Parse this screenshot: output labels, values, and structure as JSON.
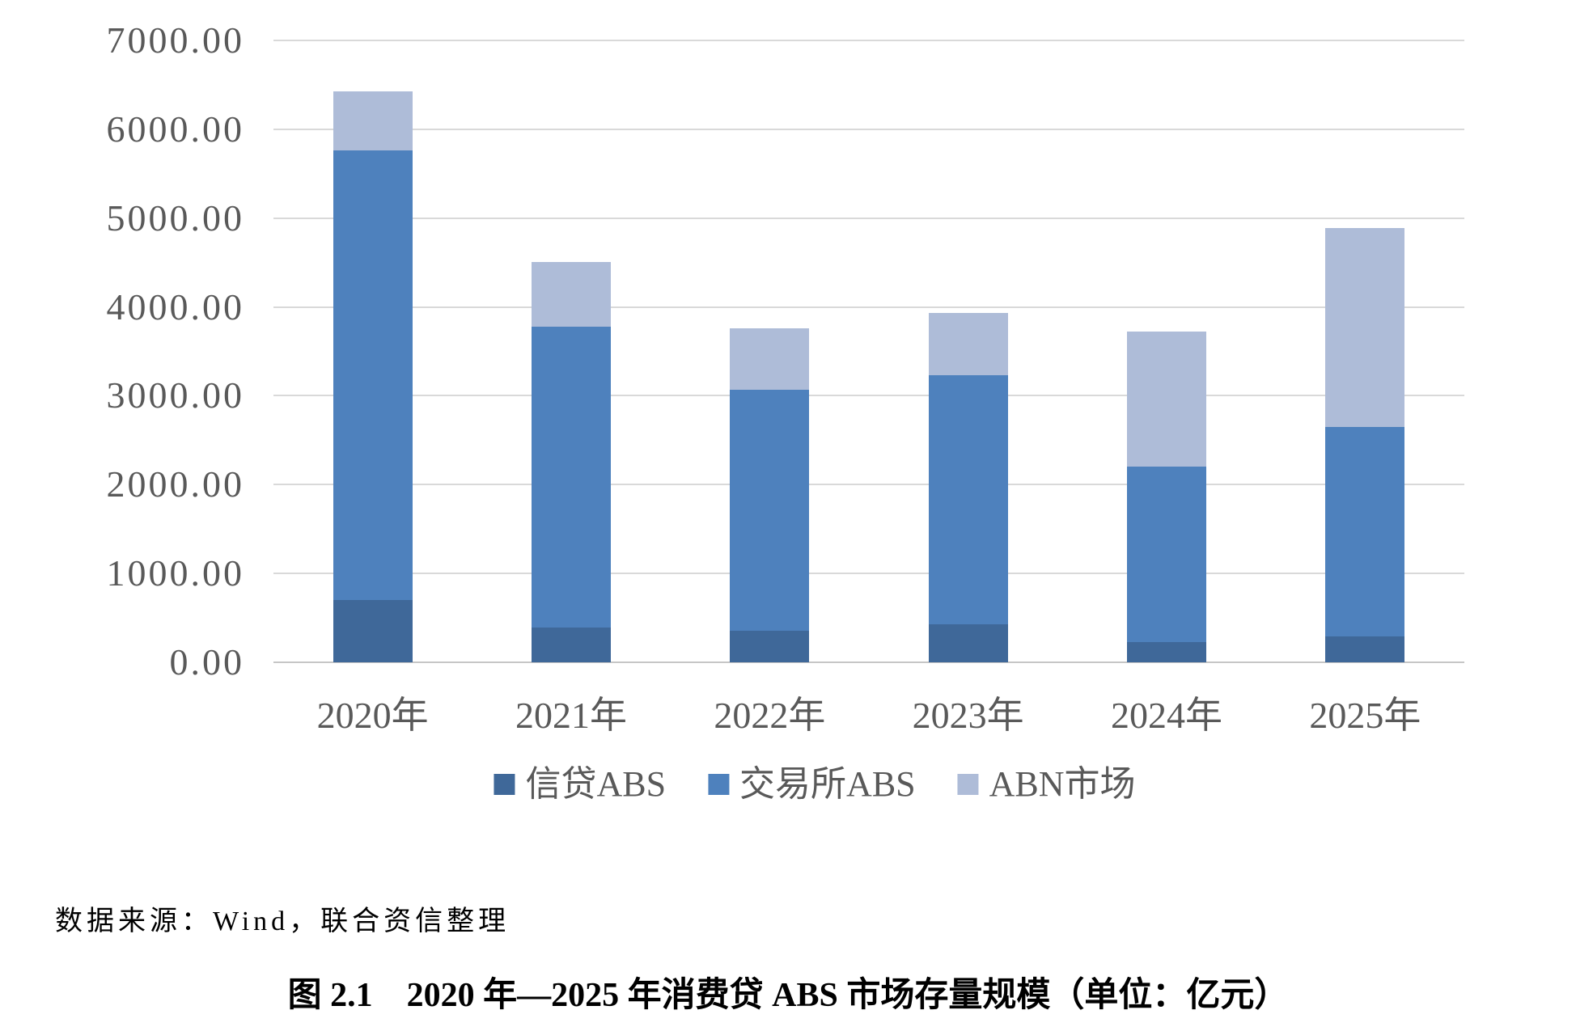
{
  "chart_data": {
    "type": "bar",
    "stacked": true,
    "title": "",
    "xlabel": "",
    "ylabel": "",
    "categories": [
      "2020年",
      "2021年",
      "2022年",
      "2023年",
      "2024年",
      "2025年"
    ],
    "series": [
      {
        "name": "信贷ABS",
        "color": "#3F6899",
        "values": [
          700,
          395,
          355,
          430,
          225,
          290
        ]
      },
      {
        "name": "交易所ABS",
        "color": "#4E81BD",
        "values": [
          5060,
          3385,
          2715,
          2800,
          1975,
          2355
        ]
      },
      {
        "name": "ABN市场",
        "color": "#AEBCD8",
        "values": [
          665,
          725,
          690,
          700,
          1520,
          2245
        ]
      }
    ],
    "stack_totals": [
      6425,
      4505,
      3760,
      3930,
      3720,
      4890
    ],
    "ylim": [
      0,
      7000
    ],
    "ytick_step": 1000,
    "ytick_labels": [
      "0.00",
      "1000.00",
      "2000.00",
      "3000.00",
      "4000.00",
      "5000.00",
      "6000.00",
      "7000.00"
    ],
    "grid": "horizontal",
    "legend_position": "bottom"
  },
  "colors": {
    "background": "#FFFFFF",
    "gridline": "#D9D9D9",
    "axis_line": "#C6C6C6",
    "axis_text": "#595959",
    "note_text": "#000000"
  },
  "source_note": "数据来源：Wind，联合资信整理",
  "caption": "图 2.1　2020 年—2025 年消费贷 ABS 市场存量规模（单位：亿元）"
}
